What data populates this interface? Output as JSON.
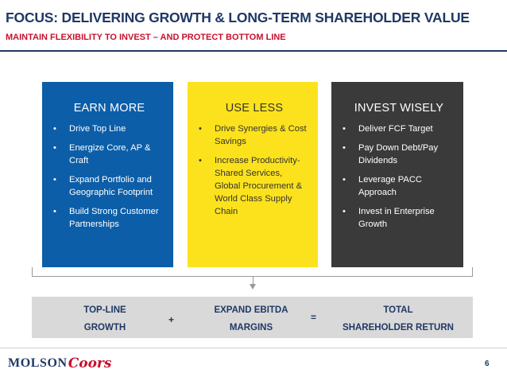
{
  "header": {
    "title": "FOCUS: DELIVERING GROWTH & LONG-TERM SHAREHOLDER VALUE",
    "subtitle": "MAINTAIN FLEXIBILITY TO INVEST – AND PROTECT BOTTOM LINE"
  },
  "panels": [
    {
      "title": "EARN MORE",
      "color": "#0c5ea8",
      "items": [
        "Drive Top Line",
        "Energize Core, AP & Craft",
        "Expand Portfolio and Geographic Footprint",
        "Build Strong Customer Partnerships"
      ]
    },
    {
      "title": "USE LESS",
      "color": "#fce21c",
      "items": [
        "Drive Synergies & Cost Savings",
        "Increase Productivity-Shared Services, Global Procurement & World Class Supply Chain"
      ]
    },
    {
      "title": "INVEST WISELY",
      "color": "#3a3a3a",
      "items": [
        "Deliver FCF Target",
        "Pay Down Debt/Pay Dividends",
        "Leverage PACC Approach",
        "Invest in Enterprise Growth"
      ]
    }
  ],
  "bullet": "•",
  "summary": {
    "a_line1": "TOP-LINE",
    "a_line2": "GROWTH",
    "plus": "+",
    "b_line1": "EXPAND EBITDA",
    "b_line2": "MARGINS",
    "equals": "=",
    "c_line1": "TOTAL",
    "c_line2": "SHAREHOLDER RETURN"
  },
  "footer": {
    "logo_part1": "MOLSON",
    "logo_part2": "Coors",
    "page_number": "6"
  },
  "colors": {
    "navy": "#1f3864",
    "red": "#c8102e",
    "summary_bg": "#d9d9d9"
  }
}
